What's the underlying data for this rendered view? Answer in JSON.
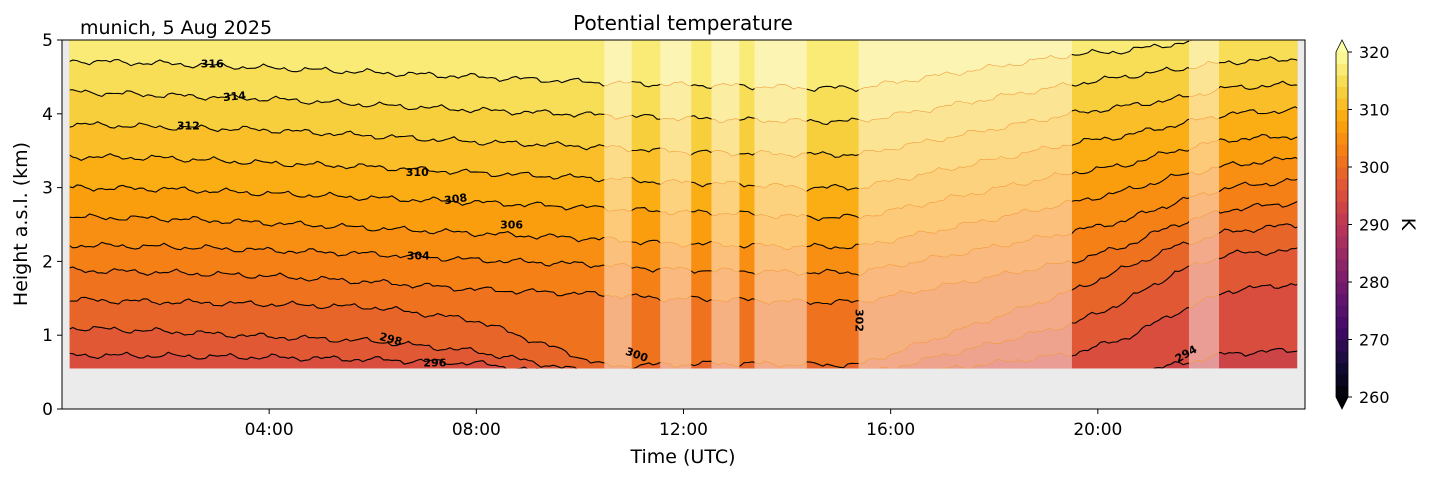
{
  "chart_data": {
    "type": "contour",
    "title": "Potential temperature",
    "subtitle": "munich, 5 Aug 2025",
    "xlabel": "Time (UTC)",
    "ylabel": "Height a.s.l. (km)",
    "xlim_hours": [
      0,
      24
    ],
    "ylim_km": [
      0,
      5
    ],
    "data_bottom_km": 0.55,
    "data_time_range_hours": [
      0.15,
      23.85
    ],
    "x_ticks": [
      {
        "hour": 4,
        "label": "04:00"
      },
      {
        "hour": 8,
        "label": "08:00"
      },
      {
        "hour": 12,
        "label": "12:00"
      },
      {
        "hour": 16,
        "label": "16:00"
      },
      {
        "hour": 20,
        "label": "20:00"
      }
    ],
    "y_ticks": [
      {
        "value": 0,
        "label": "0"
      },
      {
        "value": 1,
        "label": "1"
      },
      {
        "value": 2,
        "label": "2"
      },
      {
        "value": 3,
        "label": "3"
      },
      {
        "value": 4,
        "label": "4"
      },
      {
        "value": 5,
        "label": "5"
      }
    ],
    "masked_intervals_hours": [
      [
        10.47,
        11.0
      ],
      [
        11.55,
        12.15
      ],
      [
        12.54,
        13.08
      ],
      [
        13.37,
        14.38
      ],
      [
        15.38,
        19.5
      ],
      [
        21.76,
        22.34
      ]
    ],
    "contour_times_hours": [
      0.15,
      2,
      4,
      6,
      8,
      10.5,
      11.5,
      13,
      14.4,
      15.4,
      19.5,
      20.5,
      21.5,
      22.5,
      23.85
    ],
    "contour_levels": [
      {
        "level": 294,
        "heights_km": [
          0.3,
          0.3,
          0.3,
          0.3,
          0.3,
          0.3,
          0.3,
          0.3,
          0.3,
          0.3,
          0.3,
          0.45,
          0.6,
          0.75,
          0.8
        ]
      },
      {
        "level": 296,
        "heights_km": [
          0.73,
          0.72,
          0.7,
          0.67,
          0.62,
          0.4,
          0.4,
          0.4,
          0.4,
          0.4,
          0.75,
          0.95,
          1.3,
          1.6,
          1.7
        ]
      },
      {
        "level": 298,
        "heights_km": [
          1.1,
          1.05,
          0.98,
          0.92,
          0.78,
          0.45,
          0.45,
          0.45,
          0.45,
          0.45,
          1.15,
          1.45,
          1.85,
          2.1,
          2.15
        ]
      },
      {
        "level": 300,
        "heights_km": [
          1.48,
          1.45,
          1.42,
          1.38,
          1.2,
          0.58,
          0.6,
          0.62,
          0.6,
          0.6,
          1.6,
          1.9,
          2.2,
          2.4,
          2.5
        ]
      },
      {
        "level": 302,
        "heights_km": [
          1.88,
          1.85,
          1.8,
          1.72,
          1.62,
          1.55,
          1.5,
          1.48,
          1.45,
          1.45,
          2.0,
          2.2,
          2.5,
          2.7,
          2.8
        ]
      },
      {
        "level": 304,
        "heights_km": [
          2.22,
          2.2,
          2.15,
          2.1,
          2.02,
          1.95,
          1.9,
          1.87,
          1.85,
          1.85,
          2.4,
          2.55,
          2.8,
          3.0,
          3.1
        ]
      },
      {
        "level": 306,
        "heights_km": [
          2.6,
          2.58,
          2.52,
          2.45,
          2.38,
          2.3,
          2.25,
          2.22,
          2.2,
          2.2,
          2.8,
          2.95,
          3.15,
          3.3,
          3.4
        ]
      },
      {
        "level": 308,
        "heights_km": [
          3.0,
          2.98,
          2.92,
          2.86,
          2.8,
          2.72,
          2.68,
          2.65,
          2.6,
          2.6,
          3.2,
          3.3,
          3.5,
          3.65,
          3.7
        ]
      },
      {
        "level": 310,
        "heights_km": [
          3.42,
          3.4,
          3.33,
          3.28,
          3.2,
          3.12,
          3.08,
          3.05,
          3.0,
          3.0,
          3.6,
          3.7,
          3.85,
          4.0,
          4.05
        ]
      },
      {
        "level": 312,
        "heights_km": [
          3.86,
          3.82,
          3.78,
          3.7,
          3.62,
          3.55,
          3.5,
          3.47,
          3.45,
          3.45,
          4.0,
          4.1,
          4.2,
          4.35,
          4.4
        ]
      },
      {
        "level": 314,
        "heights_km": [
          4.3,
          4.25,
          4.2,
          4.12,
          4.05,
          3.98,
          3.95,
          3.92,
          3.9,
          3.9,
          4.4,
          4.5,
          4.6,
          4.7,
          4.75
        ]
      },
      {
        "level": 316,
        "heights_km": [
          4.72,
          4.68,
          4.62,
          4.56,
          4.5,
          4.42,
          4.4,
          4.38,
          4.35,
          4.35,
          4.8,
          4.85,
          4.95,
          5.05,
          5.1
        ]
      }
    ],
    "contour_labels": [
      {
        "text": "316",
        "hour": 2.9,
        "km": 4.68,
        "angle": 0
      },
      {
        "text": "314",
        "hour": 3.33,
        "km": 4.24,
        "angle": -5
      },
      {
        "text": "312",
        "hour": 2.44,
        "km": 3.84,
        "angle": 0
      },
      {
        "text": "310",
        "hour": 6.86,
        "km": 3.21,
        "angle": 0
      },
      {
        "text": "308",
        "hour": 7.6,
        "km": 2.85,
        "angle": -8
      },
      {
        "text": "306",
        "hour": 8.68,
        "km": 2.5,
        "angle": 0
      },
      {
        "text": "304",
        "hour": 6.88,
        "km": 2.08,
        "angle": 0
      },
      {
        "text": "298",
        "hour": 6.35,
        "km": 0.95,
        "angle": 15
      },
      {
        "text": "296",
        "hour": 7.2,
        "km": 0.63,
        "angle": 0
      },
      {
        "text": "300",
        "hour": 11.1,
        "km": 0.74,
        "angle": 20
      },
      {
        "text": "302",
        "hour": 15.4,
        "km": 1.2,
        "angle": 90
      },
      {
        "text": "294",
        "hour": 21.7,
        "km": 0.75,
        "angle": -30
      }
    ],
    "colorbar": {
      "label": "K",
      "range": [
        260,
        320
      ],
      "step": 2,
      "extend": "both",
      "colormap": "inferno",
      "ticks": [
        {
          "value": 320,
          "label": "320"
        },
        {
          "value": 310,
          "label": "310"
        },
        {
          "value": 300,
          "label": "300"
        },
        {
          "value": 290,
          "label": "290"
        },
        {
          "value": 280,
          "label": "280"
        },
        {
          "value": 270,
          "label": "270"
        },
        {
          "value": 260,
          "label": "260"
        }
      ]
    },
    "colors": {
      "axes_background": "#ebebeb",
      "contour_line": "#000000",
      "mask_overlay": "#ffffff"
    }
  }
}
